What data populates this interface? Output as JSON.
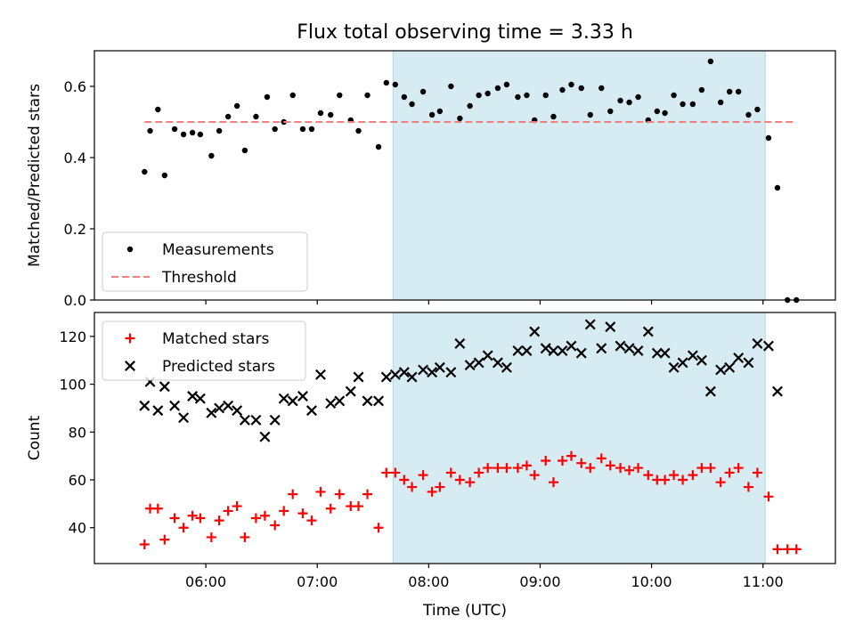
{
  "chart_data": {
    "title": "Flux total observing time = 3.33 h",
    "xlabel": "Time (UTC)",
    "x_ticks": [
      "06:00",
      "07:00",
      "08:00",
      "09:00",
      "10:00",
      "11:00"
    ],
    "x_tick_hours": [
      6,
      7,
      8,
      9,
      10,
      11
    ],
    "xlim_hours": [
      5.0,
      11.65
    ],
    "highlight_window_hours": [
      7.68,
      11.02
    ],
    "colors": {
      "measurements": "#000000",
      "threshold": "#f08080",
      "matched": "#ff0000",
      "predicted": "#000000",
      "highlight": "#add8e6"
    },
    "panels": [
      {
        "type": "scatter",
        "ylabel": "Matched/Predicted stars",
        "ylim": [
          0,
          0.7
        ],
        "y_ticks": [
          0.0,
          0.2,
          0.4,
          0.6
        ],
        "y_tick_labels": [
          "0.0",
          "0.2",
          "0.4",
          "0.6"
        ],
        "legend_position": "lower-left",
        "series": [
          {
            "name": "Measurements",
            "marker": "dot",
            "points": [
              [
                5.45,
                0.36
              ],
              [
                5.5,
                0.475
              ],
              [
                5.57,
                0.535
              ],
              [
                5.63,
                0.35
              ],
              [
                5.72,
                0.48
              ],
              [
                5.8,
                0.465
              ],
              [
                5.88,
                0.47
              ],
              [
                5.95,
                0.465
              ],
              [
                6.05,
                0.405
              ],
              [
                6.12,
                0.475
              ],
              [
                6.2,
                0.515
              ],
              [
                6.28,
                0.545
              ],
              [
                6.35,
                0.42
              ],
              [
                6.45,
                0.515
              ],
              [
                6.55,
                0.57
              ],
              [
                6.62,
                0.48
              ],
              [
                6.7,
                0.5
              ],
              [
                6.78,
                0.575
              ],
              [
                6.87,
                0.48
              ],
              [
                6.95,
                0.48
              ],
              [
                7.03,
                0.525
              ],
              [
                7.12,
                0.52
              ],
              [
                7.2,
                0.575
              ],
              [
                7.3,
                0.505
              ],
              [
                7.37,
                0.475
              ],
              [
                7.45,
                0.575
              ],
              [
                7.55,
                0.43
              ],
              [
                7.62,
                0.61
              ],
              [
                7.7,
                0.605
              ],
              [
                7.78,
                0.57
              ],
              [
                7.85,
                0.55
              ],
              [
                7.95,
                0.585
              ],
              [
                8.03,
                0.52
              ],
              [
                8.1,
                0.53
              ],
              [
                8.2,
                0.6
              ],
              [
                8.28,
                0.51
              ],
              [
                8.37,
                0.545
              ],
              [
                8.45,
                0.575
              ],
              [
                8.53,
                0.58
              ],
              [
                8.62,
                0.595
              ],
              [
                8.7,
                0.605
              ],
              [
                8.8,
                0.57
              ],
              [
                8.88,
                0.575
              ],
              [
                8.95,
                0.505
              ],
              [
                9.05,
                0.575
              ],
              [
                9.12,
                0.515
              ],
              [
                9.2,
                0.59
              ],
              [
                9.28,
                0.605
              ],
              [
                9.37,
                0.595
              ],
              [
                9.45,
                0.52
              ],
              [
                9.55,
                0.595
              ],
              [
                9.63,
                0.53
              ],
              [
                9.72,
                0.56
              ],
              [
                9.8,
                0.555
              ],
              [
                9.88,
                0.57
              ],
              [
                9.97,
                0.505
              ],
              [
                10.05,
                0.53
              ],
              [
                10.12,
                0.525
              ],
              [
                10.2,
                0.575
              ],
              [
                10.28,
                0.55
              ],
              [
                10.37,
                0.55
              ],
              [
                10.45,
                0.59
              ],
              [
                10.53,
                0.67
              ],
              [
                10.62,
                0.555
              ],
              [
                10.7,
                0.585
              ],
              [
                10.78,
                0.585
              ],
              [
                10.87,
                0.52
              ],
              [
                10.95,
                0.535
              ],
              [
                11.05,
                0.455
              ],
              [
                11.13,
                0.315
              ],
              [
                11.22,
                0.0
              ],
              [
                11.3,
                0.0
              ]
            ]
          },
          {
            "name": "Threshold",
            "marker": "dashed-line",
            "x_range": [
              5.45,
              11.3
            ],
            "value": 0.5
          }
        ]
      },
      {
        "type": "scatter",
        "ylabel": "Count",
        "ylim": [
          25,
          130
        ],
        "y_ticks": [
          40,
          60,
          80,
          100,
          120
        ],
        "y_tick_labels": [
          "40",
          "60",
          "80",
          "100",
          "120"
        ],
        "legend_position": "upper-left",
        "series": [
          {
            "name": "Matched stars",
            "marker": "plus",
            "points": [
              [
                5.45,
                33
              ],
              [
                5.5,
                48
              ],
              [
                5.57,
                48
              ],
              [
                5.63,
                35
              ],
              [
                5.72,
                44
              ],
              [
                5.8,
                40
              ],
              [
                5.88,
                45
              ],
              [
                5.95,
                44
              ],
              [
                6.05,
                36
              ],
              [
                6.12,
                43
              ],
              [
                6.2,
                47
              ],
              [
                6.28,
                49
              ],
              [
                6.35,
                36
              ],
              [
                6.45,
                44
              ],
              [
                6.53,
                45
              ],
              [
                6.62,
                41
              ],
              [
                6.7,
                47
              ],
              [
                6.78,
                54
              ],
              [
                6.87,
                46
              ],
              [
                6.95,
                43
              ],
              [
                7.03,
                55
              ],
              [
                7.12,
                48
              ],
              [
                7.2,
                54
              ],
              [
                7.3,
                49
              ],
              [
                7.37,
                49
              ],
              [
                7.45,
                54
              ],
              [
                7.55,
                40
              ],
              [
                7.62,
                63
              ],
              [
                7.7,
                63
              ],
              [
                7.78,
                60
              ],
              [
                7.85,
                57
              ],
              [
                7.95,
                62
              ],
              [
                8.03,
                55
              ],
              [
                8.1,
                57
              ],
              [
                8.2,
                63
              ],
              [
                8.28,
                60
              ],
              [
                8.37,
                59
              ],
              [
                8.45,
                63
              ],
              [
                8.53,
                65
              ],
              [
                8.62,
                65
              ],
              [
                8.7,
                65
              ],
              [
                8.8,
                65
              ],
              [
                8.88,
                66
              ],
              [
                8.95,
                62
              ],
              [
                9.05,
                68
              ],
              [
                9.12,
                59
              ],
              [
                9.2,
                68
              ],
              [
                9.28,
                70
              ],
              [
                9.37,
                67
              ],
              [
                9.45,
                65
              ],
              [
                9.55,
                69
              ],
              [
                9.63,
                66
              ],
              [
                9.72,
                65
              ],
              [
                9.8,
                64
              ],
              [
                9.88,
                65
              ],
              [
                9.97,
                62
              ],
              [
                10.05,
                60
              ],
              [
                10.12,
                60
              ],
              [
                10.2,
                62
              ],
              [
                10.28,
                60
              ],
              [
                10.37,
                62
              ],
              [
                10.45,
                65
              ],
              [
                10.53,
                65
              ],
              [
                10.62,
                59
              ],
              [
                10.7,
                63
              ],
              [
                10.78,
                65
              ],
              [
                10.87,
                57
              ],
              [
                10.95,
                63
              ],
              [
                11.05,
                53
              ],
              [
                11.13,
                31
              ],
              [
                11.22,
                31
              ],
              [
                11.3,
                31
              ]
            ]
          },
          {
            "name": "Predicted stars",
            "marker": "x",
            "points": [
              [
                5.45,
                91
              ],
              [
                5.5,
                101
              ],
              [
                5.57,
                89
              ],
              [
                5.63,
                99
              ],
              [
                5.72,
                91
              ],
              [
                5.8,
                86
              ],
              [
                5.88,
                95
              ],
              [
                5.95,
                94
              ],
              [
                6.05,
                88
              ],
              [
                6.12,
                90
              ],
              [
                6.2,
                91
              ],
              [
                6.28,
                89
              ],
              [
                6.35,
                85
              ],
              [
                6.45,
                85
              ],
              [
                6.53,
                78
              ],
              [
                6.62,
                85
              ],
              [
                6.7,
                94
              ],
              [
                6.78,
                93
              ],
              [
                6.87,
                95
              ],
              [
                6.95,
                89
              ],
              [
                7.03,
                104
              ],
              [
                7.12,
                92
              ],
              [
                7.2,
                93
              ],
              [
                7.3,
                97
              ],
              [
                7.37,
                103
              ],
              [
                7.45,
                93
              ],
              [
                7.55,
                93
              ],
              [
                7.62,
                103
              ],
              [
                7.7,
                104
              ],
              [
                7.78,
                105
              ],
              [
                7.85,
                103
              ],
              [
                7.95,
                106
              ],
              [
                8.03,
                105
              ],
              [
                8.1,
                107
              ],
              [
                8.2,
                105
              ],
              [
                8.28,
                117
              ],
              [
                8.37,
                108
              ],
              [
                8.45,
                109
              ],
              [
                8.53,
                112
              ],
              [
                8.62,
                109
              ],
              [
                8.7,
                107
              ],
              [
                8.8,
                114
              ],
              [
                8.88,
                114
              ],
              [
                8.95,
                122
              ],
              [
                9.05,
                115
              ],
              [
                9.12,
                114
              ],
              [
                9.2,
                114
              ],
              [
                9.28,
                116
              ],
              [
                9.37,
                113
              ],
              [
                9.45,
                125
              ],
              [
                9.55,
                115
              ],
              [
                9.63,
                124
              ],
              [
                9.72,
                116
              ],
              [
                9.8,
                115
              ],
              [
                9.88,
                114
              ],
              [
                9.97,
                122
              ],
              [
                10.05,
                113
              ],
              [
                10.12,
                113
              ],
              [
                10.2,
                107
              ],
              [
                10.28,
                109
              ],
              [
                10.37,
                112
              ],
              [
                10.45,
                110
              ],
              [
                10.53,
                97
              ],
              [
                10.62,
                106
              ],
              [
                10.7,
                107
              ],
              [
                10.78,
                111
              ],
              [
                10.87,
                109
              ],
              [
                10.95,
                117
              ],
              [
                11.05,
                116
              ],
              [
                11.13,
                97
              ]
            ]
          }
        ]
      }
    ]
  }
}
